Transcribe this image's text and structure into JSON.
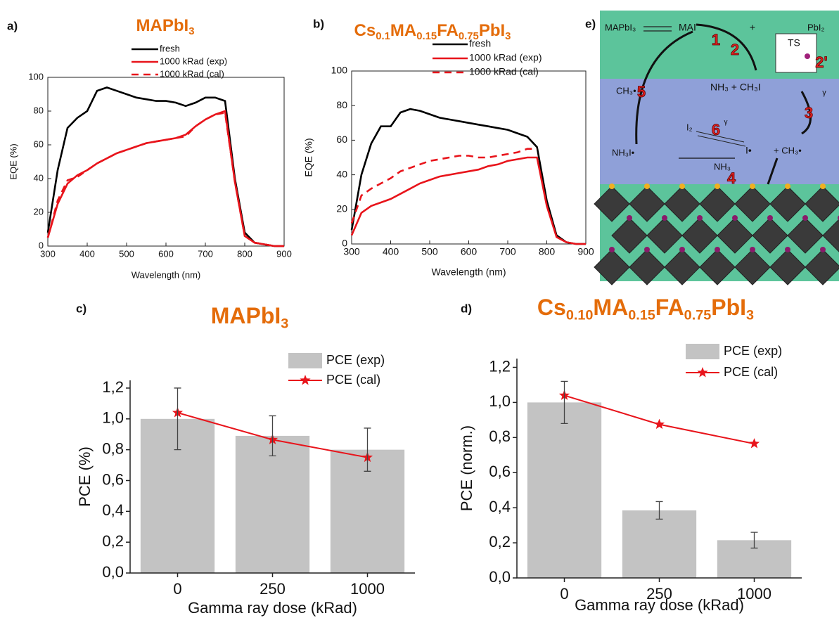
{
  "chart_data": [
    {
      "type": "line",
      "label": "a)",
      "title": [
        "MAPbI",
        "3"
      ],
      "xlabel": "Wavelength (nm)",
      "ylabel": "EQE (%)",
      "x": [
        300,
        325,
        350,
        375,
        400,
        425,
        450,
        475,
        500,
        525,
        550,
        575,
        600,
        625,
        650,
        675,
        700,
        725,
        750,
        775,
        800,
        825,
        850,
        875,
        900
      ],
      "xlim": [
        300,
        900
      ],
      "xticks": [
        300,
        400,
        500,
        600,
        700,
        800,
        900
      ],
      "ylim": [
        0,
        100
      ],
      "yticks": [
        0,
        20,
        40,
        60,
        80,
        100
      ],
      "legend": "upper right",
      "series": [
        {
          "name": "fresh",
          "color": "#000000",
          "linestyle": "solid",
          "values": [
            8,
            45,
            70,
            76,
            80,
            92,
            94,
            92,
            90,
            88,
            87,
            86,
            86,
            85,
            83,
            85,
            88,
            88,
            86,
            40,
            8,
            2,
            1,
            0,
            0
          ]
        },
        {
          "name": "1000 kRad (exp)",
          "color": "#e8141b",
          "linestyle": "solid",
          "values": [
            5,
            25,
            37,
            42,
            45,
            49,
            52,
            55,
            57,
            59,
            61,
            62,
            63,
            64,
            66,
            71,
            75,
            78,
            80,
            38,
            6,
            2,
            1,
            0,
            0
          ]
        },
        {
          "name": "1000 kRad (cal)",
          "color": "#e8141b",
          "linestyle": "dashed",
          "values": [
            5,
            27,
            39,
            41,
            45,
            49,
            52,
            55,
            57,
            59,
            61,
            62,
            63,
            64,
            65,
            71,
            75,
            78,
            79,
            38,
            6,
            2,
            1,
            0,
            0
          ]
        }
      ]
    },
    {
      "type": "line",
      "label": "b)",
      "title": [
        "Cs",
        "0.1",
        "MA",
        "0.15",
        "FA",
        "0.75",
        "PbI",
        "3"
      ],
      "xlabel": "Wavelength (nm)",
      "ylabel": "EQE (%)",
      "x": [
        300,
        325,
        350,
        375,
        400,
        425,
        450,
        475,
        500,
        525,
        550,
        575,
        600,
        625,
        650,
        675,
        700,
        725,
        750,
        775,
        800,
        825,
        850,
        875,
        900
      ],
      "xlim": [
        300,
        900
      ],
      "xticks": [
        300,
        400,
        500,
        600,
        700,
        800,
        900
      ],
      "ylim": [
        0,
        100
      ],
      "yticks": [
        0,
        20,
        40,
        60,
        80,
        100
      ],
      "legend": "upper right",
      "series": [
        {
          "name": "fresh",
          "color": "#000000",
          "linestyle": "solid",
          "values": [
            8,
            40,
            58,
            68,
            68,
            76,
            78,
            77,
            75,
            73,
            72,
            71,
            70,
            69,
            68,
            67,
            66,
            64,
            62,
            56,
            25,
            5,
            1,
            0,
            0
          ]
        },
        {
          "name": "1000 kRad (exp)",
          "color": "#e8141b",
          "linestyle": "solid",
          "values": [
            5,
            18,
            22,
            24,
            26,
            29,
            32,
            35,
            37,
            39,
            40,
            41,
            42,
            43,
            45,
            46,
            48,
            49,
            50,
            50,
            22,
            4,
            1,
            0,
            0
          ]
        },
        {
          "name": "1000 kRad (cal)",
          "color": "#e8141b",
          "linestyle": "dashed",
          "values": [
            12,
            28,
            32,
            35,
            38,
            42,
            44,
            46,
            48,
            49,
            50,
            51,
            51,
            50,
            50,
            51,
            52,
            53,
            55,
            55,
            null,
            null,
            null,
            null,
            null
          ]
        }
      ]
    },
    {
      "type": "bar",
      "label": "c)",
      "title": [
        "MAPbI",
        "3"
      ],
      "xlabel": "Gamma ray dose (kRad)",
      "ylabel": "PCE (%)",
      "categories": [
        "0",
        "250",
        "1000"
      ],
      "ylim": [
        0,
        1.25
      ],
      "yticks": [
        {
          "value": 0,
          "label": "0,0"
        },
        {
          "value": 0.2,
          "label": "0,2"
        },
        {
          "value": 0.4,
          "label": "0,4"
        },
        {
          "value": 0.6,
          "label": "0,6"
        },
        {
          "value": 0.8,
          "label": "0,8"
        },
        {
          "value": 1.0,
          "label": "1,0"
        },
        {
          "value": 1.2,
          "label": "1,2"
        }
      ],
      "legend": "upper right",
      "series": [
        {
          "name": "PCE (exp)",
          "type": "bar",
          "color": "#c3c3c3",
          "values": [
            1.0,
            0.89,
            0.8
          ],
          "errors": [
            0.2,
            0.13,
            0.14
          ]
        },
        {
          "name": "PCE (cal)",
          "type": "line",
          "marker": "star",
          "color": "#e8141b",
          "values": [
            1.04,
            0.865,
            0.75
          ]
        }
      ]
    },
    {
      "type": "bar",
      "label": "d)",
      "title": [
        "Cs",
        "0.10",
        "MA",
        "0.15",
        "FA",
        "0.75",
        "PbI",
        "3"
      ],
      "xlabel": "Gamma ray dose (kRad)",
      "ylabel": "PCE (norm.)",
      "categories": [
        "0",
        "250",
        "1000"
      ],
      "ylim": [
        0,
        1.25
      ],
      "yticks": [
        {
          "value": 0,
          "label": "0,0"
        },
        {
          "value": 0.2,
          "label": "0,2"
        },
        {
          "value": 0.4,
          "label": "0,4"
        },
        {
          "value": 0.6,
          "label": "0,6"
        },
        {
          "value": 0.8,
          "label": "0,8"
        },
        {
          "value": 1.0,
          "label": "1,0"
        },
        {
          "value": 1.2,
          "label": "1,2"
        }
      ],
      "legend": "upper right",
      "series": [
        {
          "name": "PCE (exp)",
          "type": "bar",
          "color": "#c3c3c3",
          "values": [
            1.0,
            0.385,
            0.215
          ],
          "errors": [
            0.12,
            0.05,
            0.045
          ]
        },
        {
          "name": "PCE (cal)",
          "type": "line",
          "marker": "star",
          "color": "#e8141b",
          "values": [
            1.04,
            0.875,
            0.765
          ]
        }
      ]
    }
  ],
  "diagram": {
    "label": "e)",
    "texts": [
      "MAPbI₃",
      "MAI",
      "+",
      "PbI₂",
      "1",
      "2",
      "TS",
      "2'",
      "CH₃•",
      "5",
      "NH₃ + CH₃I",
      "γ",
      "I₂",
      "6",
      "γ",
      "3",
      "NH₃I•",
      "NH₃",
      "I•",
      "+ CH₃•",
      "4"
    ]
  }
}
